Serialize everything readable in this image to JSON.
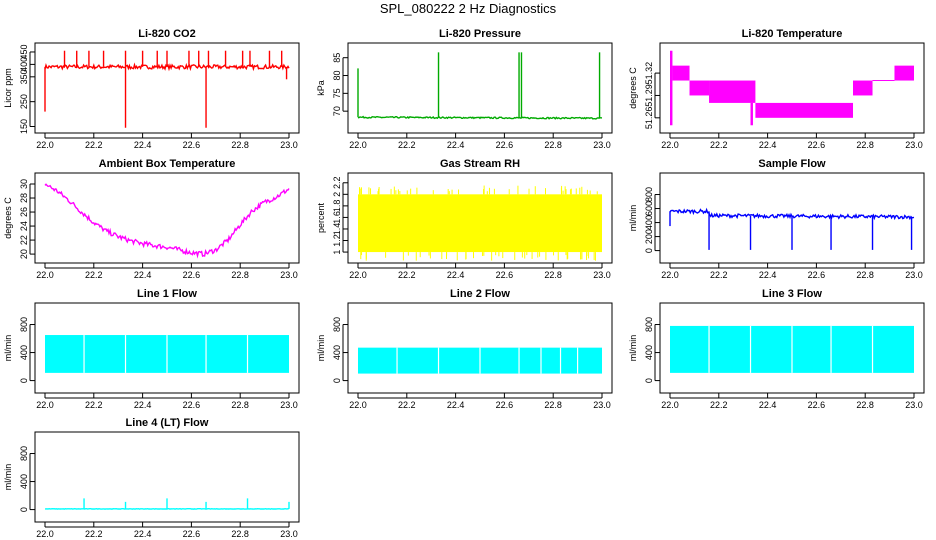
{
  "figure": {
    "title": "SPL_080222  2 Hz Diagnostics"
  },
  "chart_data": [
    {
      "type": "line",
      "title": "Li-820 CO2",
      "xlabel": "",
      "ylabel": "Licor ppm",
      "color": "#ff0000",
      "xlim": [
        22.0,
        23.0
      ],
      "ylim": [
        140,
        470
      ],
      "xticks": [
        22.0,
        22.2,
        22.4,
        22.6,
        22.8,
        23.0
      ],
      "yticks": [
        150,
        250,
        350,
        400,
        450
      ],
      "series": [
        {
          "baseline": [
            [
              22.0,
              390
            ],
            [
              23.0,
              390
            ]
          ],
          "noise": 8,
          "spikes": [
            [
              22.0,
              210
            ],
            [
              22.08,
              455
            ],
            [
              22.13,
              455
            ],
            [
              22.18,
              455
            ],
            [
              22.24,
              455
            ],
            [
              22.33,
              145
            ],
            [
              22.33,
              455
            ],
            [
              22.4,
              455
            ],
            [
              22.46,
              455
            ],
            [
              22.5,
              455
            ],
            [
              22.59,
              455
            ],
            [
              22.63,
              455
            ],
            [
              22.66,
              145
            ],
            [
              22.67,
              455
            ],
            [
              22.74,
              455
            ],
            [
              22.81,
              455
            ],
            [
              22.84,
              455
            ],
            [
              22.92,
              455
            ],
            [
              22.97,
              455
            ],
            [
              22.99,
              340
            ]
          ]
        }
      ]
    },
    {
      "type": "line",
      "title": "Li-820 Pressure",
      "xlabel": "",
      "ylabel": "kPa",
      "color": "#00aa00",
      "xlim": [
        22.0,
        23.0
      ],
      "ylim": [
        65,
        88
      ],
      "xticks": [
        22.0,
        22.2,
        22.4,
        22.6,
        22.8,
        23.0
      ],
      "yticks": [
        70,
        75,
        80,
        85
      ],
      "series": [
        {
          "baseline": [
            [
              22.0,
              68.3
            ],
            [
              23.0,
              68.0
            ]
          ],
          "noise": 0.2,
          "spikes": [
            [
              22.0,
              82
            ],
            [
              22.33,
              86.5
            ],
            [
              22.66,
              86.5
            ],
            [
              22.67,
              86.5
            ],
            [
              22.99,
              86.5
            ]
          ]
        }
      ]
    },
    {
      "type": "line",
      "title": "Li-820 Temperature",
      "xlabel": "",
      "ylabel": "degrees C",
      "color": "#ff00ff",
      "xlim": [
        22.0,
        23.0
      ],
      "ylim": [
        51.245,
        51.355
      ],
      "xticks": [
        22.0,
        22.2,
        22.4,
        22.6,
        22.8,
        23.0
      ],
      "yticks": [
        51.26,
        51.29,
        51.32
      ],
      "bands": [
        {
          "x": [
            22.0,
            22.01
          ],
          "y": [
            51.25,
            51.35
          ]
        },
        {
          "x": [
            22.01,
            22.08
          ],
          "y": [
            51.31,
            51.33
          ]
        },
        {
          "x": [
            22.08,
            22.16
          ],
          "y": [
            51.29,
            51.31
          ]
        },
        {
          "x": [
            22.16,
            22.35
          ],
          "y": [
            51.28,
            51.31
          ]
        },
        {
          "x": [
            22.33,
            22.34
          ],
          "y": [
            51.25,
            51.28
          ]
        },
        {
          "x": [
            22.35,
            22.75
          ],
          "y": [
            51.26,
            51.28
          ]
        },
        {
          "x": [
            22.75,
            22.83
          ],
          "y": [
            51.29,
            51.31
          ]
        },
        {
          "x": [
            22.92,
            23.0
          ],
          "y": [
            51.31,
            51.33
          ]
        }
      ],
      "steps": [
        [
          22.83,
          51.31
        ],
        [
          22.92,
          51.31
        ]
      ]
    },
    {
      "type": "line",
      "title": "Ambient Box Temperature",
      "xlabel": "",
      "ylabel": "degrees C",
      "color": "#ff00ff",
      "xlim": [
        22.0,
        23.0
      ],
      "ylim": [
        19.3,
        31.0
      ],
      "xticks": [
        22.0,
        22.2,
        22.4,
        22.6,
        22.8,
        23.0
      ],
      "yticks": [
        20,
        22,
        24,
        26,
        28,
        30
      ],
      "series": [
        {
          "baseline": [
            [
              22.0,
              30.0
            ],
            [
              22.05,
              29.0
            ],
            [
              22.1,
              27.6
            ],
            [
              22.15,
              26.0
            ],
            [
              22.2,
              24.5
            ],
            [
              22.25,
              23.3
            ],
            [
              22.3,
              22.5
            ],
            [
              22.35,
              21.9
            ],
            [
              22.4,
              21.5
            ],
            [
              22.45,
              21.2
            ],
            [
              22.5,
              21.0
            ],
            [
              22.55,
              20.6
            ],
            [
              22.6,
              20.2
            ],
            [
              22.65,
              20.0
            ],
            [
              22.7,
              20.6
            ],
            [
              22.75,
              22.0
            ],
            [
              22.8,
              24.2
            ],
            [
              22.85,
              26.2
            ],
            [
              22.9,
              27.4
            ],
            [
              22.95,
              28.2
            ],
            [
              23.0,
              29.3
            ]
          ],
          "noise": 0.35,
          "spikes": []
        }
      ]
    },
    {
      "type": "line",
      "title": "Gas Stream RH",
      "xlabel": "",
      "ylabel": "percent",
      "color": "#ffff00",
      "xlim": [
        22.0,
        23.0
      ],
      "ylim": [
        0.88,
        2.3
      ],
      "xticks": [
        22.0,
        22.2,
        22.4,
        22.6,
        22.8,
        23.0
      ],
      "yticks": [
        1.0,
        1.2,
        1.4,
        1.6,
        1.8,
        2.0,
        2.2
      ],
      "bands": [
        {
          "x": [
            22.0,
            23.0
          ],
          "y": [
            1.0,
            2.0
          ]
        }
      ],
      "jitter": true
    },
    {
      "type": "line",
      "title": "Sample Flow",
      "xlabel": "",
      "ylabel": "ml/min",
      "color": "#0000ff",
      "xlim": [
        22.0,
        23.0
      ],
      "ylim": [
        -120,
        1050
      ],
      "xticks": [
        22.0,
        22.2,
        22.4,
        22.6,
        22.8,
        23.0
      ],
      "yticks": [
        0,
        200,
        400,
        600,
        800
      ],
      "series": [
        {
          "baseline": [
            [
              22.0,
              560
            ],
            [
              22.16,
              560
            ],
            [
              22.16,
              500
            ],
            [
              23.0,
              480
            ]
          ],
          "noise": 25,
          "spikes": [
            [
              22.0,
              350
            ],
            [
              22.16,
              10
            ],
            [
              22.33,
              10
            ],
            [
              22.5,
              10
            ],
            [
              22.66,
              10
            ],
            [
              22.83,
              10
            ],
            [
              22.99,
              10
            ]
          ]
        }
      ]
    },
    {
      "type": "line",
      "title": "Line 1 Flow",
      "xlabel": "",
      "ylabel": "ml/min",
      "color": "#00ffff",
      "xlim": [
        22.0,
        23.0
      ],
      "ylim": [
        -120,
        1050
      ],
      "xticks": [
        22.0,
        22.2,
        22.4,
        22.6,
        22.8,
        23.0
      ],
      "yticks": [
        0,
        400,
        800
      ],
      "bands": [
        {
          "x": [
            22.0,
            23.0
          ],
          "y": [
            110,
            650
          ]
        }
      ],
      "gaps": [
        22.16,
        22.33,
        22.5,
        22.66,
        22.83
      ]
    },
    {
      "type": "line",
      "title": "Line 2 Flow",
      "xlabel": "",
      "ylabel": "ml/min",
      "color": "#00ffff",
      "xlim": [
        22.0,
        23.0
      ],
      "ylim": [
        -120,
        1050
      ],
      "xticks": [
        22.0,
        22.2,
        22.4,
        22.6,
        22.8,
        23.0
      ],
      "yticks": [
        0,
        400,
        800
      ],
      "bands": [
        {
          "x": [
            22.0,
            23.0
          ],
          "y": [
            100,
            470
          ]
        }
      ],
      "gaps": [
        22.16,
        22.33,
        22.5,
        22.66,
        22.75,
        22.83,
        22.9
      ]
    },
    {
      "type": "line",
      "title": "Line 3 Flow",
      "xlabel": "",
      "ylabel": "ml/min",
      "color": "#00ffff",
      "xlim": [
        22.0,
        23.0
      ],
      "ylim": [
        -120,
        1050
      ],
      "xticks": [
        22.0,
        22.2,
        22.4,
        22.6,
        22.8,
        23.0
      ],
      "yticks": [
        0,
        400,
        800
      ],
      "bands": [
        {
          "x": [
            22.0,
            23.0
          ],
          "y": [
            110,
            780
          ]
        }
      ],
      "gaps": [
        22.16,
        22.33,
        22.5,
        22.66,
        22.83
      ]
    },
    {
      "type": "line",
      "title": "Line 4 (LT) Flow",
      "xlabel": "",
      "ylabel": "ml/min",
      "color": "#00ffff",
      "xlim": [
        22.0,
        23.0
      ],
      "ylim": [
        -120,
        1050
      ],
      "xticks": [
        22.0,
        22.2,
        22.4,
        22.6,
        22.8,
        23.0
      ],
      "yticks": [
        0,
        400,
        800
      ],
      "series": [
        {
          "baseline": [
            [
              22.0,
              10
            ],
            [
              23.0,
              10
            ]
          ],
          "noise": 3,
          "spikes": [
            [
              22.16,
              160
            ],
            [
              22.33,
              110
            ],
            [
              22.5,
              160
            ],
            [
              22.66,
              110
            ],
            [
              22.83,
              160
            ],
            [
              23.0,
              110
            ]
          ]
        }
      ]
    }
  ]
}
